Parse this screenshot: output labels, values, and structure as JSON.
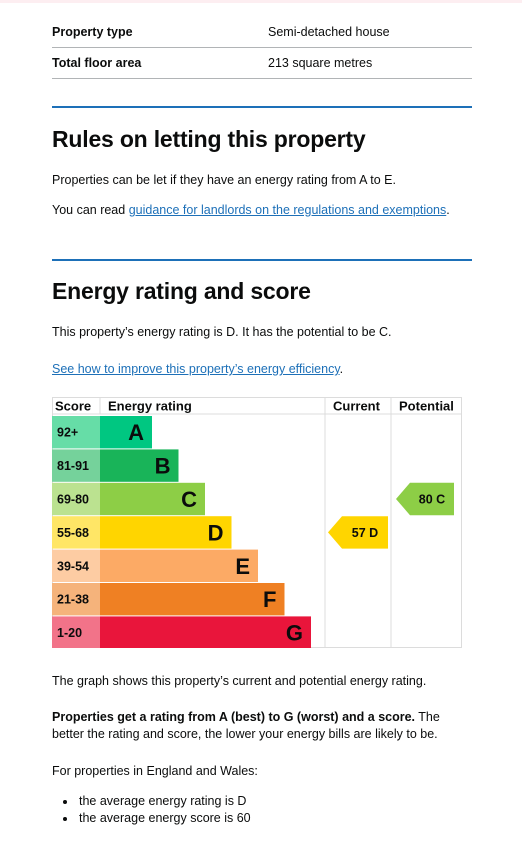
{
  "summary": {
    "rows": [
      {
        "key": "Property type",
        "value": "Semi-detached house"
      },
      {
        "key": "Total floor area",
        "value": "213 square metres"
      }
    ]
  },
  "letting": {
    "heading": "Rules on letting this property",
    "para1": "Properties can be let if they have an energy rating from A to E.",
    "para2_prefix": "You can read ",
    "para2_link": "guidance for landlords on the regulations and exemptions",
    "para2_suffix": "."
  },
  "energy": {
    "heading": "Energy rating and score",
    "para1": "This property’s energy rating is D. It has the potential to be C.",
    "improve_link": "See how to improve this property’s energy efficiency",
    "improve_suffix": "."
  },
  "colors": {
    "link": "#1d70b8",
    "section_rule": "#1d70b8",
    "text": "#0b0c0c"
  },
  "chart_data": {
    "type": "table",
    "headers": [
      "Score",
      "Energy rating",
      "Current",
      "Potential"
    ],
    "bands": [
      {
        "letter": "A",
        "range": "92+",
        "color": "#00c781",
        "score_bg": "#66dda7"
      },
      {
        "letter": "B",
        "range": "81-91",
        "color": "#19b459",
        "score_bg": "#75d29b"
      },
      {
        "letter": "C",
        "range": "69-80",
        "color": "#8dce46",
        "score_bg": "#bbe290"
      },
      {
        "letter": "D",
        "range": "55-68",
        "color": "#ffd500",
        "score_bg": "#ffe666"
      },
      {
        "letter": "E",
        "range": "39-54",
        "color": "#fcaa65",
        "score_bg": "#fdcca3"
      },
      {
        "letter": "F",
        "range": "21-38",
        "color": "#ef8023",
        "score_bg": "#f5b37b"
      },
      {
        "letter": "G",
        "range": "1-20",
        "color": "#e9153b",
        "score_bg": "#f27389"
      }
    ],
    "current": {
      "score": 57,
      "band": "D",
      "label": "57 D"
    },
    "potential": {
      "score": 80,
      "band": "C",
      "label": "80 C"
    }
  },
  "after_chart": {
    "graph_note": "The graph shows this property’s current and potential energy rating.",
    "rating_bold": "Properties get a rating from A (best) to G (worst) and a score.",
    "rating_rest": " The better the rating and score, the lower your energy bills are likely to be.",
    "averages_intro": "For properties in England and Wales:",
    "bullets": [
      "the average energy rating is D",
      "the average energy score is 60"
    ]
  }
}
